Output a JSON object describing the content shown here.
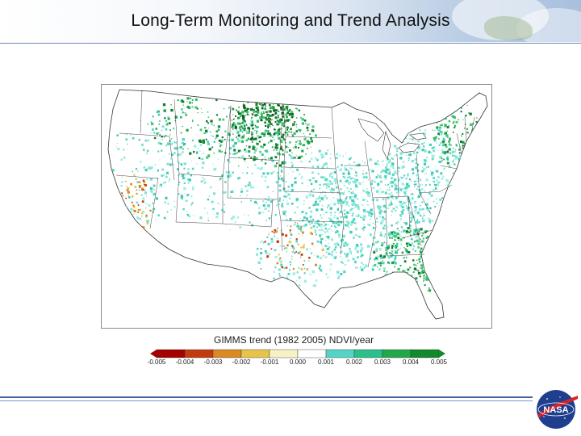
{
  "slide": {
    "title": "Long-Term Monitoring and Trend Analysis"
  },
  "map": {
    "subject": "Contiguous United States",
    "legend_title": "GIMMS trend (1982 2005) NDVI/year",
    "colorbar_colors": [
      "#a50000",
      "#c43a10",
      "#d98a25",
      "#e6c34a",
      "#f3ec9c",
      "#ffffff",
      "#b8ece3",
      "#55d4c6",
      "#2bbf8c",
      "#22a84a",
      "#128a2c"
    ],
    "tick_labels": [
      "-0.005",
      "-0.004",
      "-0.003",
      "-0.002",
      "-0.001",
      "0.000",
      "0.001",
      "0.002",
      "0.003",
      "0.004",
      "0.005"
    ]
  },
  "logo": {
    "name": "nasa-logo",
    "text": "NASA"
  }
}
